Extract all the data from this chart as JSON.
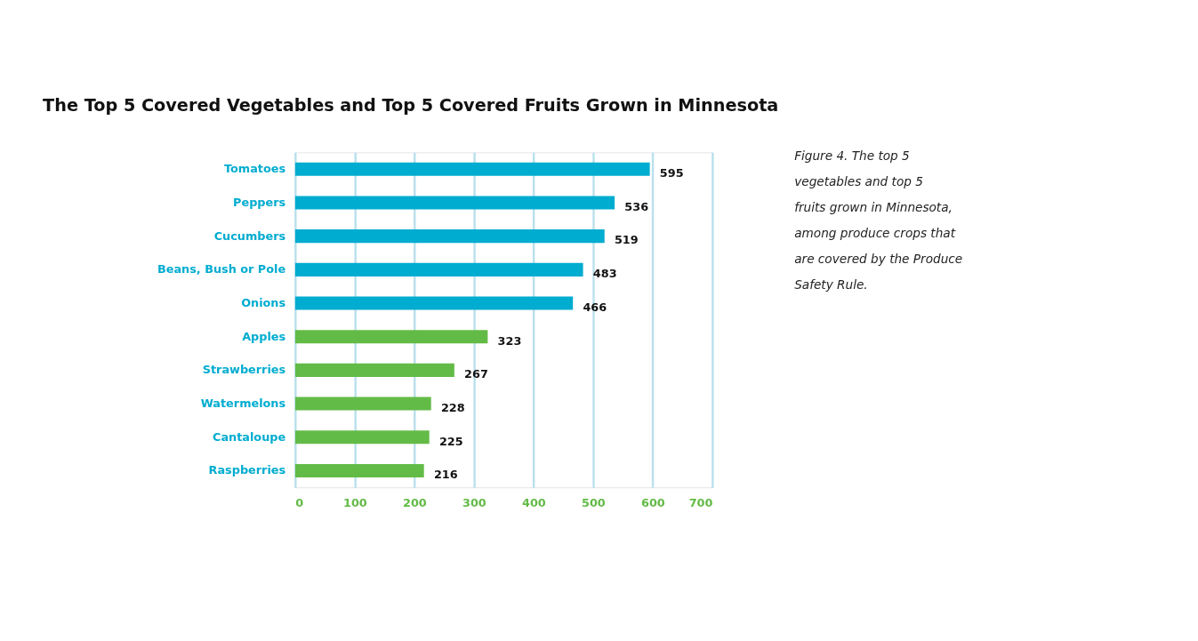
{
  "chart_data": {
    "type": "bar",
    "orientation": "horizontal",
    "title": "The Top 5 Covered Vegetables and Top 5 Covered Fruits Grown in Minnesota",
    "categories": [
      "Tomatoes",
      "Peppers",
      "Cucumbers",
      "Beans, Bush or Pole",
      "Onions",
      "Apples",
      "Strawberries",
      "Watermelons",
      "Cantaloupe",
      "Raspberries"
    ],
    "values": [
      595,
      536,
      519,
      483,
      466,
      323,
      267,
      228,
      225,
      216
    ],
    "colors": [
      "#00acd0",
      "#00acd0",
      "#00acd0",
      "#00acd0",
      "#00acd0",
      "#63bb47",
      "#63bb47",
      "#63bb47",
      "#63bb47",
      "#63bb47"
    ],
    "xlim": [
      0,
      700
    ],
    "xticks": [
      0,
      100,
      200,
      300,
      400,
      500,
      600,
      700
    ],
    "grid": "x",
    "data_labels": true,
    "annotations": [
      "Figure 4. The top 5 vegetables and top 5 fruits grown in Minnesota, among produce crops that are covered by the Produce Safety Rule."
    ]
  }
}
